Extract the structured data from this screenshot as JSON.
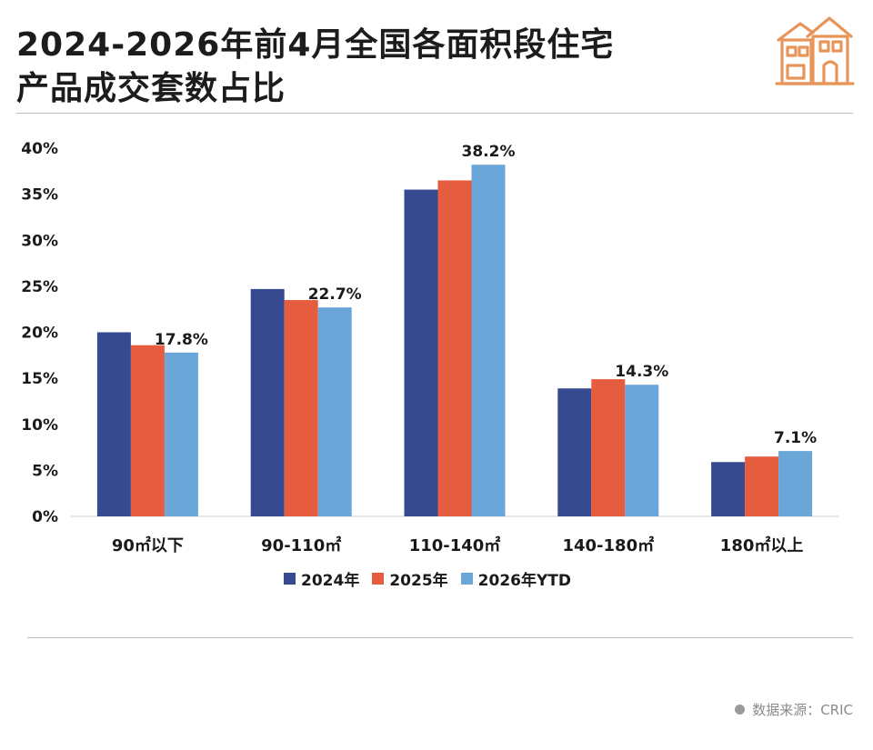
{
  "title_line1": "2024-2026年前4月全国各面积段住宅",
  "title_line2": "产品成交套数占比",
  "source": "数据来源：CRIC",
  "icon": "house-icon",
  "chart_data": {
    "type": "bar",
    "categories": [
      "90㎡以下",
      "90-110㎡",
      "110-140㎡",
      "140-180㎡",
      "180㎡以上"
    ],
    "series": [
      {
        "name": "2024年",
        "color": "#354a8f",
        "values": [
          20.0,
          24.7,
          35.5,
          13.9,
          5.9
        ]
      },
      {
        "name": "2025年",
        "color": "#e55c3e",
        "values": [
          18.6,
          23.5,
          36.5,
          14.9,
          6.5
        ]
      },
      {
        "name": "2026年YTD",
        "color": "#6aa6d8",
        "values": [
          17.8,
          22.7,
          38.2,
          14.3,
          7.1
        ],
        "labels": [
          "17.8%",
          "22.7%",
          "38.2%",
          "14.3%",
          "7.1%"
        ]
      }
    ],
    "ylim": [
      0,
      40
    ],
    "yticks": [
      "0%",
      "5%",
      "10%",
      "15%",
      "20%",
      "25%",
      "30%",
      "35%",
      "40%"
    ],
    "legend": "bottom-center",
    "grid": false
  }
}
